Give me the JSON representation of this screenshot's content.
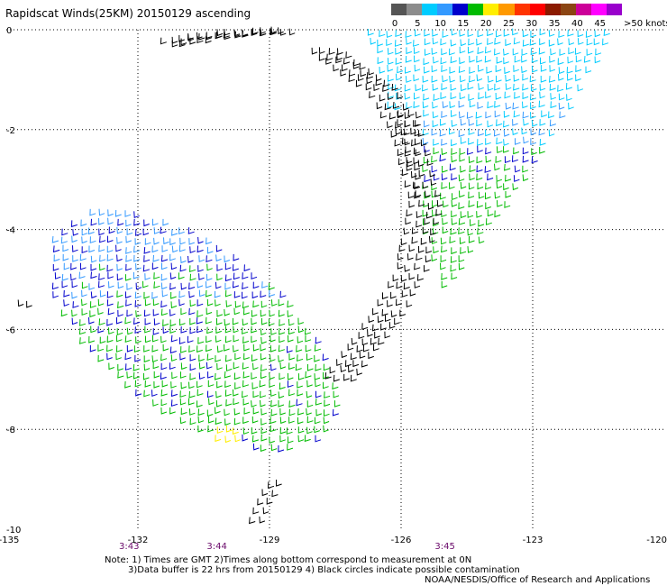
{
  "title": "Rapidscat Winds(25KM) 20150129 ascending",
  "legend": {
    "labels": [
      "0",
      "5",
      "10",
      "15",
      "20",
      "25",
      "30",
      "35",
      "40",
      "45",
      ">50 knots"
    ],
    "colors": [
      "#555555",
      "#8c8c8c",
      "#00ccff",
      "#3399ff",
      "#0000cc",
      "#00bb00",
      "#ffee00",
      "#ff9900",
      "#ff3300",
      "#ff0000",
      "#8b1a00",
      "#8b4513",
      "#cc0099",
      "#ff00ff",
      "#9900cc"
    ]
  },
  "axes": {
    "x_ticks": [
      "-135",
      "-132",
      "-129",
      "-126",
      "-123",
      "-120"
    ],
    "y_ticks": [
      "0",
      "-2",
      "-4",
      "-6",
      "-8",
      "-10"
    ],
    "lon_range": [
      -135,
      -120
    ],
    "lat_range": [
      -10,
      0
    ]
  },
  "times": [
    {
      "label": "3:43",
      "lon": -132.2
    },
    {
      "label": "3:44",
      "lon": -130.2
    },
    {
      "label": "3:45",
      "lon": -125.0
    }
  ],
  "notes": {
    "line1": "Note: 1) Times are GMT 2)Times along bottom correspond to measurement at 0N",
    "line2": "3)Data buffer is 22 hrs from 20150129 4) Black circles indicate possible contamination",
    "line3": "NOAA/NESDIS/Office of Research and Applications"
  },
  "barb_colors": {
    "low": "#000000",
    "light": "#00ccff",
    "moderate": "#3399ff",
    "strong": "#0000cc",
    "fresh": "#00bb00",
    "gale": "#ffee00"
  }
}
